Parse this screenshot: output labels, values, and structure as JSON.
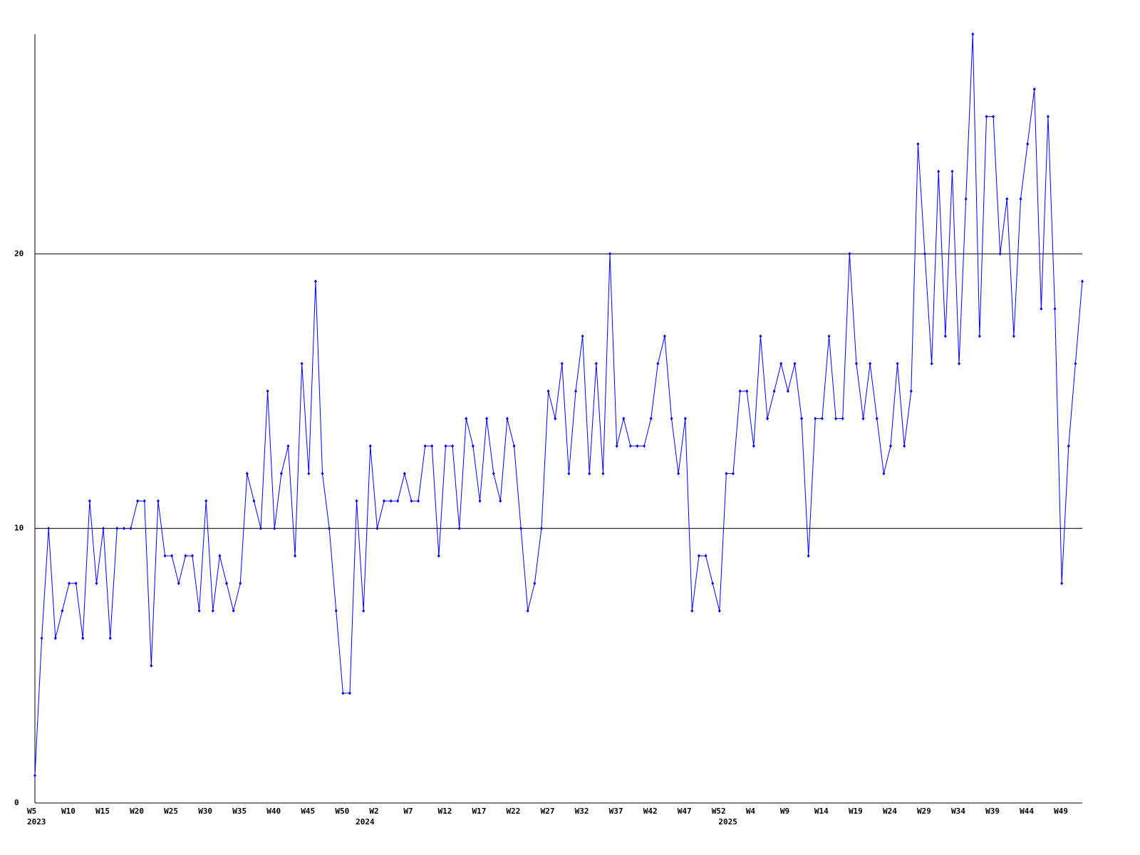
{
  "chart_data": {
    "type": "line",
    "categories": [
      "W5",
      null,
      null,
      null,
      null,
      "W10",
      null,
      null,
      null,
      null,
      "W15",
      null,
      null,
      null,
      null,
      "W20",
      null,
      null,
      null,
      null,
      "W25",
      null,
      null,
      null,
      null,
      "W30",
      null,
      null,
      null,
      null,
      "W35",
      null,
      null,
      null,
      null,
      "W40",
      null,
      null,
      null,
      null,
      "W45",
      null,
      null,
      null,
      null,
      "W50",
      null,
      null,
      null,
      null,
      "W2",
      null,
      null,
      null,
      null,
      "W7",
      null,
      null,
      null,
      null,
      "W12",
      null,
      null,
      null,
      null,
      "W17",
      null,
      null,
      null,
      null,
      "W22",
      null,
      null,
      null,
      null,
      "W27",
      null,
      null,
      null,
      null,
      "W32",
      null,
      null,
      null,
      null,
      "W37",
      null,
      null,
      null,
      null,
      "W42",
      null,
      null,
      null,
      null,
      "W47",
      null,
      null,
      null,
      null,
      "W52",
      null,
      null,
      null,
      null,
      "W4",
      null,
      null,
      null,
      null,
      "W9",
      null,
      null,
      null,
      null,
      "W14",
      null,
      null,
      null,
      null,
      "W19",
      null,
      null,
      null,
      null,
      "W24",
      null,
      null,
      null,
      null,
      "W29",
      null,
      null,
      null,
      null,
      "W34",
      null,
      null,
      null,
      null,
      "W39",
      null,
      null,
      null,
      null,
      "W44",
      null,
      null,
      null,
      null,
      "W49",
      null,
      null,
      null
    ],
    "category_years": [
      "2023",
      null,
      null,
      null,
      null,
      null,
      null,
      null,
      null,
      null,
      null,
      null,
      null,
      null,
      null,
      null,
      null,
      null,
      null,
      null,
      null,
      null,
      null,
      null,
      null,
      null,
      null,
      null,
      null,
      null,
      null,
      null,
      null,
      null,
      null,
      null,
      null,
      null,
      null,
      null,
      null,
      null,
      null,
      null,
      null,
      null,
      null,
      null,
      "2024",
      null,
      null,
      null,
      null,
      null,
      null,
      null,
      null,
      null,
      null,
      null,
      null,
      null,
      null,
      null,
      null,
      null,
      null,
      null,
      null,
      null,
      null,
      null,
      null,
      null,
      null,
      null,
      null,
      null,
      null,
      null,
      null,
      null,
      null,
      null,
      null,
      null,
      null,
      null,
      null,
      null,
      null,
      null,
      null,
      null,
      null,
      null,
      null,
      null,
      null,
      null,
      null,
      "2025",
      null,
      null,
      null,
      null,
      null,
      null,
      null,
      null,
      null,
      null,
      null,
      null,
      null,
      null,
      null,
      null,
      null,
      null,
      null,
      null,
      null,
      null,
      null,
      null,
      null,
      null,
      null,
      null,
      null,
      null,
      null,
      null,
      null,
      null,
      null,
      null,
      null,
      null,
      null,
      null,
      null,
      null,
      null,
      null,
      null,
      null,
      null,
      null,
      null,
      null,
      null,
      null
    ],
    "series": [
      {
        "color": "#0000ff",
        "values": [
          1,
          6,
          10,
          6,
          7,
          8,
          8,
          6,
          11,
          8,
          10,
          6,
          10,
          10,
          10,
          11,
          11,
          5,
          11,
          9,
          9,
          8,
          9,
          9,
          7,
          11,
          7,
          9,
          8,
          7,
          8,
          12,
          11,
          10,
          15,
          10,
          12,
          13,
          9,
          16,
          12,
          19,
          12,
          10,
          7,
          4,
          4,
          11,
          7,
          13,
          10,
          11,
          11,
          11,
          12,
          11,
          11,
          13,
          13,
          9,
          13,
          13,
          10,
          14,
          13,
          11,
          14,
          12,
          11,
          14,
          13,
          10,
          7,
          8,
          10,
          15,
          14,
          16,
          12,
          15,
          17,
          12,
          16,
          12,
          20,
          13,
          14,
          13,
          13,
          13,
          14,
          16,
          17,
          14,
          12,
          14,
          7,
          9,
          9,
          8,
          7,
          12,
          12,
          15,
          15,
          13,
          17,
          14,
          15,
          16,
          15,
          16,
          14,
          9,
          14,
          14,
          17,
          14,
          14,
          20,
          16,
          14,
          16,
          14,
          12,
          13,
          16,
          13,
          15,
          24,
          20,
          16,
          23,
          17,
          23,
          16,
          22,
          28,
          17,
          25,
          25,
          20,
          22,
          17,
          22,
          24,
          26,
          18,
          25,
          18,
          8,
          13,
          16,
          19
        ]
      }
    ],
    "ylim": [
      0,
      28
    ],
    "yticks": [
      0,
      10,
      20
    ],
    "grid": true
  }
}
